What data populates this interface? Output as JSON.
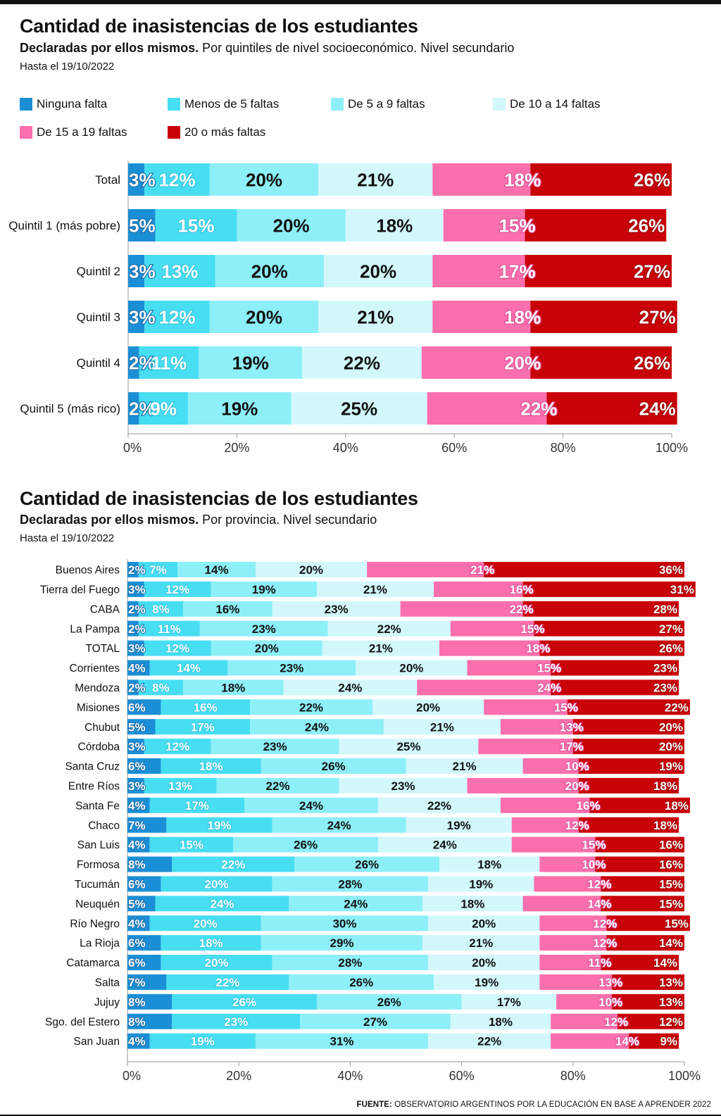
{
  "colors": [
    "#1a8fd6",
    "#47def2",
    "#8deff8",
    "#d2f8fc",
    "#fb6fac",
    "#c90208"
  ],
  "legend": [
    "Ninguna falta",
    "Menos de 5 faltas",
    "De 5 a 9 faltas",
    "De 10 a 14 faltas",
    "De 15 a 19 faltas",
    "20 o más faltas"
  ],
  "chart1": {
    "title": "Cantidad de inasistencias de los estudiantes",
    "subtitle_bold": "Declaradas por ellos mismos.",
    "subtitle_rest": " Por quintiles de nivel socioeconómico. Nivel secundario",
    "date": "Hasta el 19/10/2022"
  },
  "chart2": {
    "title": "Cantidad de inasistencias de los estudiantes",
    "subtitle_bold": "Declaradas por ellos mismos.",
    "subtitle_rest": " Por provincia. Nivel secundario",
    "date": "Hasta el 19/10/2022"
  },
  "source": {
    "label": "FUENTE:",
    "text": " OBSERVATORIO ARGENTINOS POR LA EDUCACIÓN EN BASE A APRENDER 2022"
  },
  "chart_data": [
    {
      "type": "bar",
      "orientation": "horizontal",
      "stacked": true,
      "title": "Cantidad de inasistencias de los estudiantes",
      "categories": [
        "Total",
        "Quintil 1 (más pobre)",
        "Quintil 2",
        "Quintil 3",
        "Quintil 4",
        "Quintil 5 (más rico)"
      ],
      "series": [
        {
          "name": "Ninguna falta",
          "values": [
            3,
            5,
            3,
            3,
            2,
            2
          ]
        },
        {
          "name": "Menos de 5 faltas",
          "values": [
            12,
            15,
            13,
            12,
            11,
            9
          ]
        },
        {
          "name": "De 5 a 9 faltas",
          "values": [
            20,
            20,
            20,
            20,
            19,
            19
          ]
        },
        {
          "name": "De 10 a 14 faltas",
          "values": [
            21,
            18,
            20,
            21,
            22,
            25
          ]
        },
        {
          "name": "De 15 a 19 faltas",
          "values": [
            18,
            15,
            17,
            18,
            20,
            22
          ]
        },
        {
          "name": "20 o más faltas",
          "values": [
            26,
            26,
            27,
            27,
            26,
            24
          ]
        }
      ],
      "xticks": [
        "0%",
        "20%",
        "40%",
        "60%",
        "80%",
        "100%"
      ],
      "xlim": [
        0,
        100
      ],
      "legend_position": "top"
    },
    {
      "type": "bar",
      "orientation": "horizontal",
      "stacked": true,
      "title": "Cantidad de inasistencias de los estudiantes",
      "categories": [
        "Buenos Aires",
        "Tierra del Fuego",
        "CABA",
        "La Pampa",
        "TOTAL",
        "Corrientes",
        "Mendoza",
        "Misiones",
        "Chubut",
        "Córdoba",
        "Santa Cruz",
        "Entre Ríos",
        "Santa Fe",
        "Chaco",
        "San Luis",
        "Formosa",
        "Tucumán",
        "Neuquén",
        "Río Negro",
        "La Rioja",
        "Catamarca",
        "Salta",
        "Jujuy",
        "Sgo. del Estero",
        "San Juan"
      ],
      "series": [
        {
          "name": "Ninguna falta",
          "values": [
            2,
            3,
            2,
            2,
            3,
            4,
            2,
            6,
            5,
            3,
            6,
            3,
            4,
            7,
            4,
            8,
            6,
            5,
            4,
            6,
            6,
            7,
            8,
            8,
            4
          ]
        },
        {
          "name": "Menos de 5 faltas",
          "values": [
            7,
            12,
            8,
            11,
            12,
            14,
            8,
            16,
            17,
            12,
            18,
            13,
            17,
            19,
            15,
            22,
            20,
            24,
            20,
            18,
            20,
            22,
            26,
            23,
            19
          ]
        },
        {
          "name": "De 5 a 9 faltas",
          "values": [
            14,
            19,
            16,
            23,
            20,
            23,
            18,
            22,
            24,
            23,
            26,
            22,
            24,
            24,
            26,
            26,
            28,
            24,
            30,
            29,
            28,
            26,
            26,
            27,
            31
          ]
        },
        {
          "name": "De 10 a 14 faltas",
          "values": [
            20,
            21,
            23,
            22,
            21,
            20,
            24,
            20,
            21,
            25,
            21,
            23,
            22,
            19,
            24,
            18,
            19,
            18,
            20,
            21,
            20,
            19,
            17,
            18,
            22
          ]
        },
        {
          "name": "De 15 a 19 faltas",
          "values": [
            21,
            16,
            22,
            15,
            18,
            15,
            24,
            15,
            13,
            17,
            10,
            20,
            16,
            12,
            15,
            10,
            12,
            14,
            12,
            12,
            11,
            13,
            10,
            12,
            14
          ]
        },
        {
          "name": "20 o más faltas",
          "values": [
            36,
            31,
            28,
            27,
            26,
            23,
            23,
            22,
            20,
            20,
            19,
            18,
            18,
            18,
            16,
            16,
            15,
            15,
            15,
            14,
            14,
            13,
            13,
            12,
            9
          ]
        }
      ],
      "xticks": [
        "0%",
        "20%",
        "40%",
        "60%",
        "80%",
        "100%"
      ],
      "xlim": [
        0,
        100
      ]
    }
  ]
}
